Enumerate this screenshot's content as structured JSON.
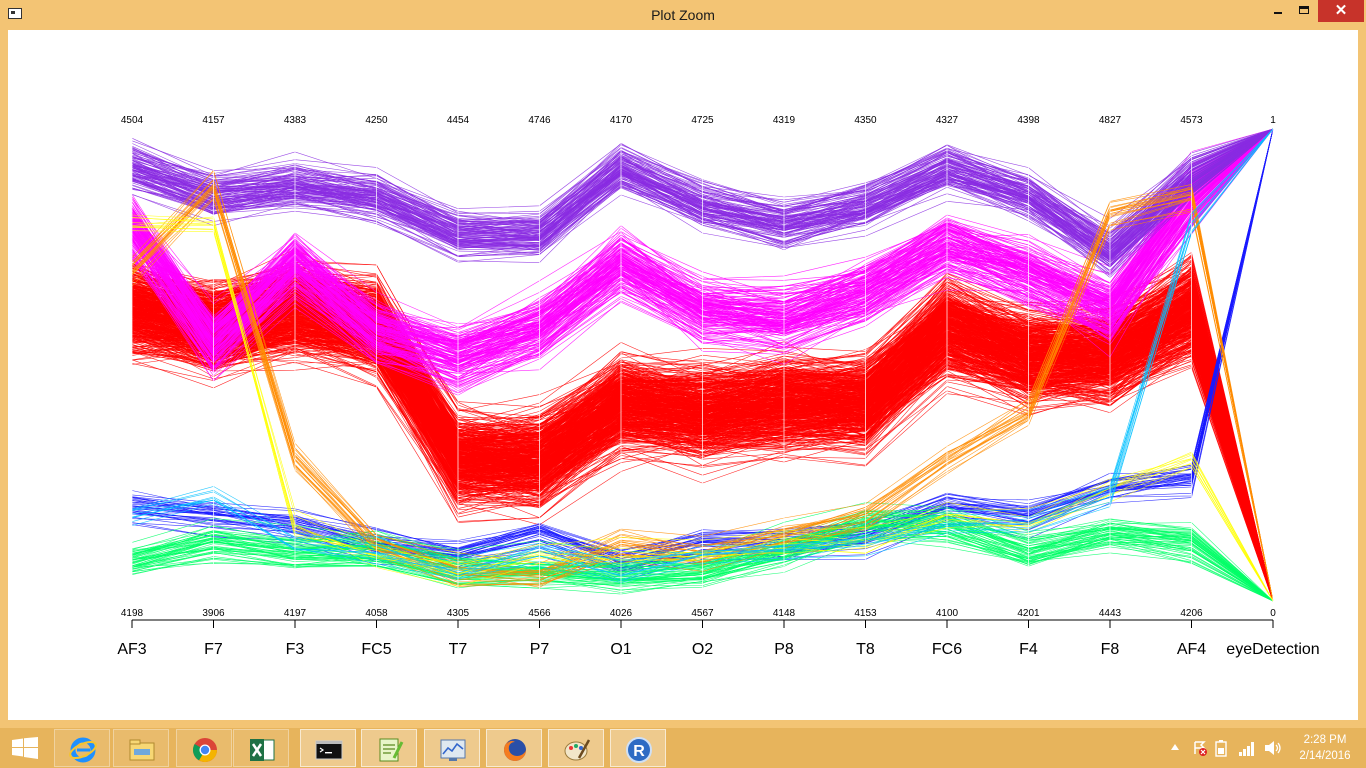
{
  "window": {
    "title": "Plot Zoom",
    "close_glyph": "✕"
  },
  "chart_data": {
    "type": "parallel-coordinates",
    "axes": [
      {
        "name": "AF3",
        "max": "4504",
        "min": "4198"
      },
      {
        "name": "F7",
        "max": "4157",
        "min": "3906"
      },
      {
        "name": "F3",
        "max": "4383",
        "min": "4197"
      },
      {
        "name": "FC5",
        "max": "4250",
        "min": "4058"
      },
      {
        "name": "T7",
        "max": "4454",
        "min": "4305"
      },
      {
        "name": "P7",
        "max": "4746",
        "min": "4566"
      },
      {
        "name": "O1",
        "max": "4170",
        "min": "4026"
      },
      {
        "name": "O2",
        "max": "4725",
        "min": "4567"
      },
      {
        "name": "P8",
        "max": "4319",
        "min": "4148"
      },
      {
        "name": "T8",
        "max": "4350",
        "min": "4153"
      },
      {
        "name": "FC6",
        "max": "4327",
        "min": "4100"
      },
      {
        "name": "F4",
        "max": "4398",
        "min": "4201"
      },
      {
        "name": "F8",
        "max": "4827",
        "min": "4443"
      },
      {
        "name": "AF4",
        "max": "4573",
        "min": "4206"
      },
      {
        "name": "eyeDetection",
        "max": "1",
        "min": "0"
      }
    ],
    "color_scale": [
      "#ff0000",
      "#ff00ff",
      "#8a2be2",
      "#1a1aff",
      "#00bfff",
      "#00ff66",
      "#ccff00",
      "#ffff00",
      "#ff8c00"
    ],
    "dominant_color": "#ff0000"
  },
  "taskbar": {
    "items": [
      {
        "icon": "internet-explorer-icon"
      },
      {
        "icon": "file-explorer-icon"
      },
      {
        "icon": "chrome-icon"
      },
      {
        "icon": "excel-icon"
      },
      {
        "icon": "command-prompt-icon"
      },
      {
        "icon": "notepad-plus-plus-icon"
      },
      {
        "icon": "performance-monitor-icon"
      },
      {
        "icon": "firefox-icon"
      },
      {
        "icon": "paint-icon"
      },
      {
        "icon": "r-icon"
      }
    ],
    "clock": {
      "time": "2:28 PM",
      "date": "2/14/2016"
    }
  }
}
